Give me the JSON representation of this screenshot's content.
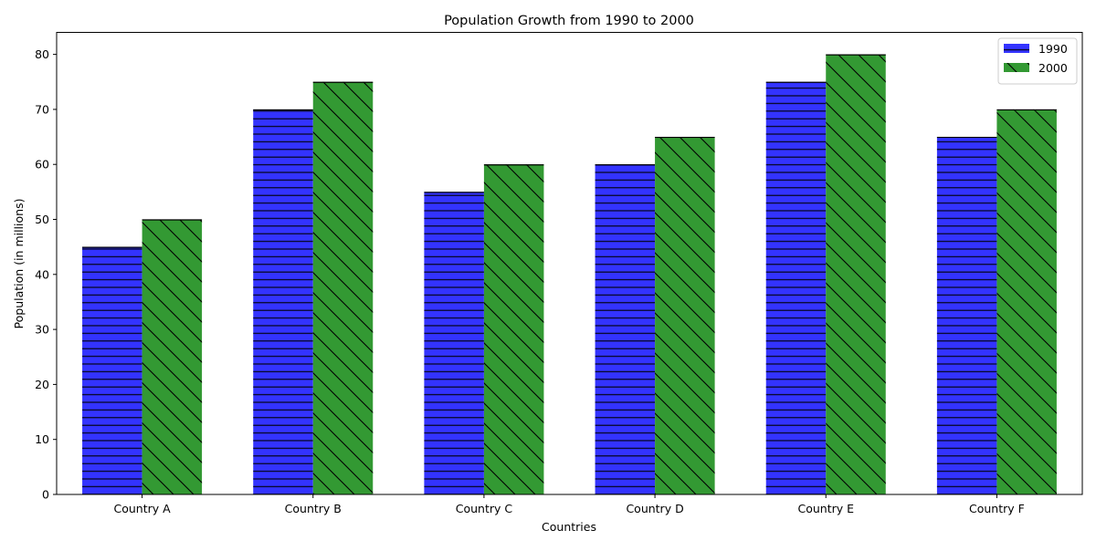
{
  "chart_data": {
    "type": "bar",
    "title": "Population Growth from 1990 to 2000",
    "xlabel": "Countries",
    "ylabel": "Population (in millions)",
    "categories": [
      "Country A",
      "Country B",
      "Country C",
      "Country D",
      "Country E",
      "Country F"
    ],
    "series": [
      {
        "name": "1990",
        "values": [
          45,
          70,
          55,
          60,
          75,
          65
        ],
        "color": "#3333ff",
        "hatch": "horizontal"
      },
      {
        "name": "2000",
        "values": [
          50,
          75,
          60,
          65,
          80,
          70
        ],
        "color": "#339933",
        "hatch": "diagonal"
      }
    ],
    "ylim": [
      0,
      84
    ],
    "yticks": [
      0,
      10,
      20,
      30,
      40,
      50,
      60,
      70,
      80
    ],
    "grid": false,
    "legend": "top-right"
  }
}
